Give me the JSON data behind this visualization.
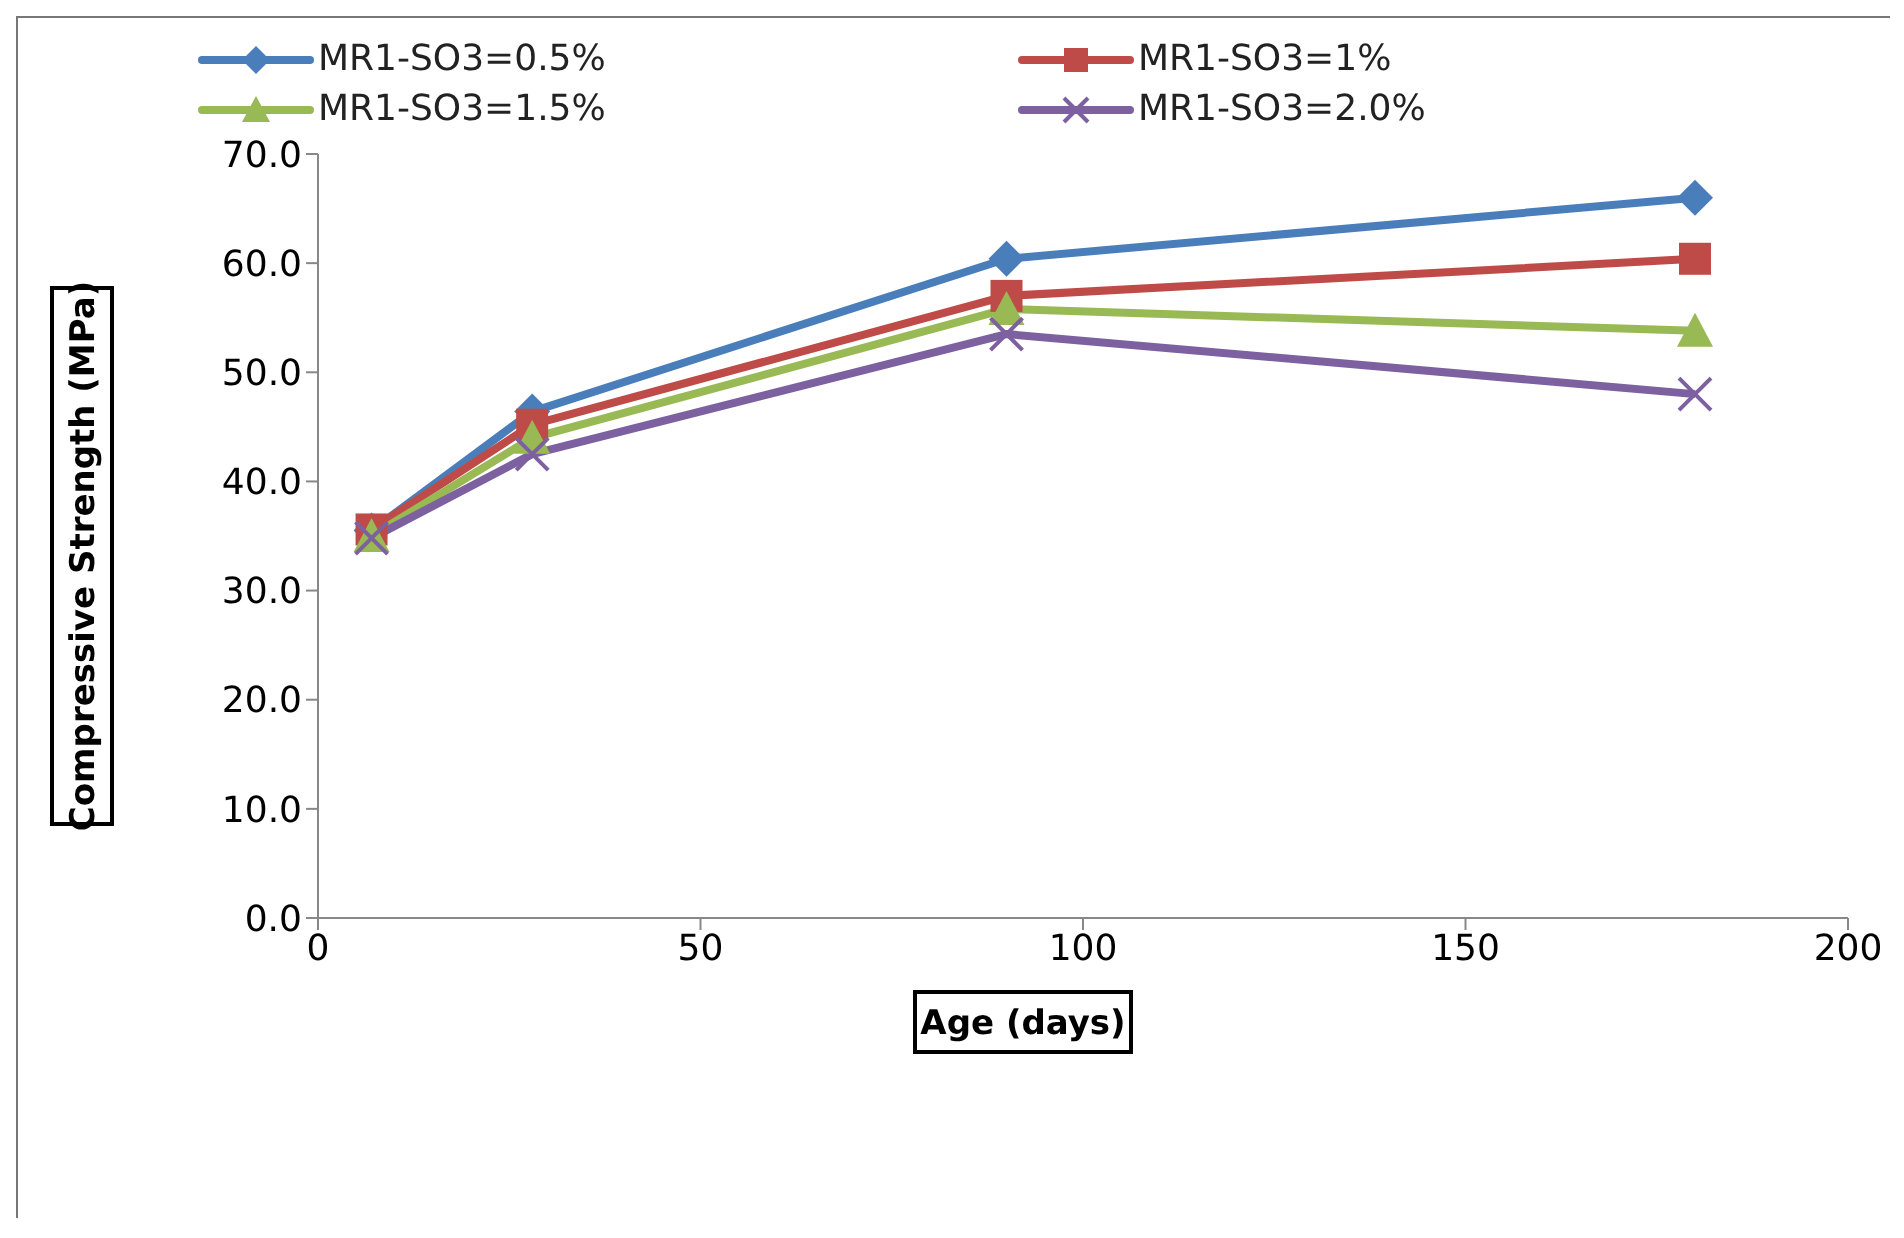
{
  "chart_data": {
    "type": "line",
    "xlabel": "Age (days)",
    "ylabel": "Compressive Strength (MPa)",
    "x": [
      7,
      28,
      90,
      180
    ],
    "series": [
      {
        "name": "MR1-SO3=0.5%",
        "color": "#4a7ebb",
        "marker": "diamond",
        "values": [
          35.5,
          46.4,
          60.4,
          66.0
        ]
      },
      {
        "name": "MR1-SO3=1%",
        "color": "#be4b48",
        "marker": "square",
        "values": [
          35.6,
          45.2,
          57.0,
          60.4
        ]
      },
      {
        "name": "MR1-SO3=1.5%",
        "color": "#98b954",
        "marker": "triangle",
        "values": [
          35.0,
          44.0,
          55.8,
          53.8
        ]
      },
      {
        "name": "MR1-SO3=2.0%",
        "color": "#7d60a0",
        "marker": "cross",
        "values": [
          34.8,
          42.5,
          53.5,
          48.0
        ]
      }
    ],
    "xlim": [
      0,
      200
    ],
    "xticks": [
      0,
      50,
      100,
      150,
      200
    ],
    "ylim": [
      0,
      70
    ],
    "yticks": [
      {
        "value": 0,
        "label": "0.0"
      },
      {
        "value": 10,
        "label": "10.0"
      },
      {
        "value": 20,
        "label": "20.0"
      },
      {
        "value": 30,
        "label": "30.0"
      },
      {
        "value": 40,
        "label": "40.0"
      },
      {
        "value": 50,
        "label": "50.0"
      },
      {
        "value": 60,
        "label": "60.0"
      },
      {
        "value": 70,
        "label": "70.0"
      }
    ],
    "grid": false,
    "legend": "top",
    "line_style": "solid"
  }
}
